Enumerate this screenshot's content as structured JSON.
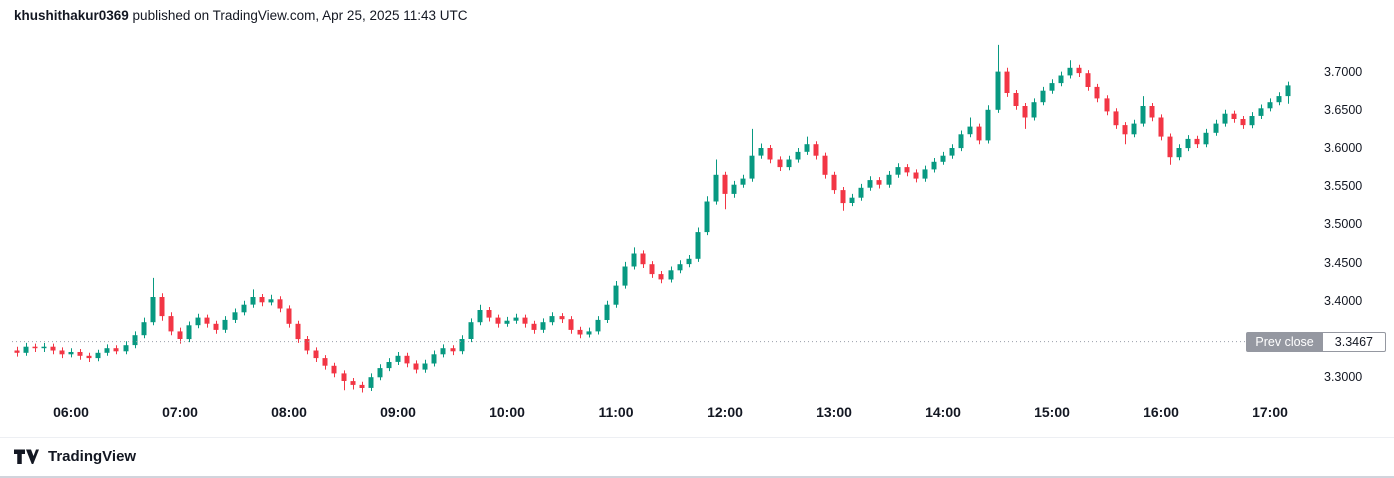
{
  "header": {
    "username": "khushithakur0369",
    "suffix": " published on TradingView.com, Apr 25, 2025 11:43 UTC"
  },
  "footer": {
    "brand": "TradingView"
  },
  "prev_close_badge": {
    "label": "Prev close",
    "value": "3.3467"
  },
  "colors": {
    "up": "#089981",
    "down": "#f23645",
    "text": "#131722",
    "prev_close_line": "#9a9ea9",
    "badge_bg": "#9598a1",
    "background": "#ffffff"
  },
  "chart_data": {
    "type": "candlestick",
    "ohlc_format": [
      "time",
      "open",
      "high",
      "low",
      "close"
    ],
    "y_ticks": [
      "3.7000",
      "3.6500",
      "3.6000",
      "3.5500",
      "3.5000",
      "3.4500",
      "3.4000",
      "3.3000"
    ],
    "x_ticks": [
      "06:00",
      "07:00",
      "08:00",
      "09:00",
      "10:00",
      "11:00",
      "12:00",
      "13:00",
      "14:00",
      "15:00",
      "16:00",
      "17:00"
    ],
    "prev_close": 3.3467,
    "ylim": [
      3.2545,
      3.7545
    ],
    "grid": false,
    "candles": [
      [
        "05:30",
        3.335,
        3.34,
        3.327,
        3.332
      ],
      [
        "05:35",
        3.332,
        3.345,
        3.328,
        3.34
      ],
      [
        "05:40",
        3.34,
        3.344,
        3.333,
        3.338
      ],
      [
        "05:45",
        3.338,
        3.345,
        3.333,
        3.34
      ],
      [
        "05:50",
        3.34,
        3.344,
        3.33,
        3.335
      ],
      [
        "05:55",
        3.335,
        3.339,
        3.325,
        3.33
      ],
      [
        "06:00",
        3.33,
        3.338,
        3.326,
        3.333
      ],
      [
        "06:05",
        3.333,
        3.337,
        3.323,
        3.328
      ],
      [
        "06:10",
        3.328,
        3.332,
        3.32,
        3.325
      ],
      [
        "06:15",
        3.325,
        3.336,
        3.321,
        3.332
      ],
      [
        "06:20",
        3.332,
        3.343,
        3.328,
        3.338
      ],
      [
        "06:25",
        3.338,
        3.342,
        3.33,
        3.334
      ],
      [
        "06:30",
        3.334,
        3.347,
        3.33,
        3.342
      ],
      [
        "06:35",
        3.342,
        3.36,
        3.338,
        3.355
      ],
      [
        "06:40",
        3.355,
        3.378,
        3.351,
        3.372
      ],
      [
        "06:45",
        3.372,
        3.43,
        3.368,
        3.405
      ],
      [
        "06:50",
        3.405,
        3.41,
        3.374,
        3.38
      ],
      [
        "06:55",
        3.38,
        3.385,
        3.355,
        3.36
      ],
      [
        "07:00",
        3.36,
        3.365,
        3.344,
        3.35
      ],
      [
        "07:05",
        3.35,
        3.373,
        3.346,
        3.368
      ],
      [
        "07:10",
        3.368,
        3.383,
        3.364,
        3.378
      ],
      [
        "07:15",
        3.378,
        3.382,
        3.365,
        3.37
      ],
      [
        "07:20",
        3.37,
        3.374,
        3.357,
        3.362
      ],
      [
        "07:25",
        3.362,
        3.38,
        3.358,
        3.375
      ],
      [
        "07:30",
        3.375,
        3.39,
        3.371,
        3.385
      ],
      [
        "07:35",
        3.385,
        3.4,
        3.381,
        3.395
      ],
      [
        "07:40",
        3.395,
        3.415,
        3.391,
        3.405
      ],
      [
        "07:45",
        3.405,
        3.409,
        3.393,
        3.398
      ],
      [
        "07:50",
        3.398,
        3.408,
        3.394,
        3.402
      ],
      [
        "07:55",
        3.402,
        3.406,
        3.385,
        3.39
      ],
      [
        "08:00",
        3.39,
        3.394,
        3.365,
        3.37
      ],
      [
        "08:05",
        3.37,
        3.374,
        3.345,
        3.35
      ],
      [
        "08:10",
        3.35,
        3.354,
        3.33,
        3.335
      ],
      [
        "08:15",
        3.335,
        3.339,
        3.32,
        3.325
      ],
      [
        "08:20",
        3.325,
        3.329,
        3.31,
        3.315
      ],
      [
        "08:25",
        3.315,
        3.319,
        3.3,
        3.305
      ],
      [
        "08:30",
        3.305,
        3.309,
        3.283,
        3.295
      ],
      [
        "08:35",
        3.295,
        3.299,
        3.284,
        3.29
      ],
      [
        "08:40",
        3.29,
        3.294,
        3.28,
        3.286
      ],
      [
        "08:45",
        3.286,
        3.305,
        3.282,
        3.3
      ],
      [
        "08:50",
        3.3,
        3.317,
        3.296,
        3.312
      ],
      [
        "08:55",
        3.312,
        3.325,
        3.308,
        3.32
      ],
      [
        "09:00",
        3.32,
        3.333,
        3.316,
        3.328
      ],
      [
        "09:05",
        3.328,
        3.332,
        3.313,
        3.318
      ],
      [
        "09:10",
        3.318,
        3.322,
        3.305,
        3.31
      ],
      [
        "09:15",
        3.31,
        3.323,
        3.306,
        3.318
      ],
      [
        "09:20",
        3.318,
        3.335,
        3.314,
        3.33
      ],
      [
        "09:25",
        3.33,
        3.343,
        3.326,
        3.338
      ],
      [
        "09:30",
        3.338,
        3.342,
        3.329,
        3.334
      ],
      [
        "09:35",
        3.334,
        3.355,
        3.33,
        3.35
      ],
      [
        "09:40",
        3.35,
        3.377,
        3.346,
        3.372
      ],
      [
        "09:45",
        3.372,
        3.395,
        3.368,
        3.388
      ],
      [
        "09:50",
        3.388,
        3.392,
        3.373,
        3.378
      ],
      [
        "09:55",
        3.378,
        3.382,
        3.365,
        3.37
      ],
      [
        "10:00",
        3.37,
        3.379,
        3.366,
        3.374
      ],
      [
        "10:05",
        3.374,
        3.383,
        3.37,
        3.378
      ],
      [
        "10:10",
        3.378,
        3.382,
        3.365,
        3.37
      ],
      [
        "10:15",
        3.37,
        3.374,
        3.357,
        3.362
      ],
      [
        "10:20",
        3.362,
        3.377,
        3.358,
        3.372
      ],
      [
        "10:25",
        3.372,
        3.385,
        3.368,
        3.38
      ],
      [
        "10:30",
        3.38,
        3.384,
        3.371,
        3.376
      ],
      [
        "10:35",
        3.376,
        3.38,
        3.357,
        3.362
      ],
      [
        "10:40",
        3.362,
        3.366,
        3.351,
        3.356
      ],
      [
        "10:45",
        3.356,
        3.365,
        3.352,
        3.36
      ],
      [
        "10:50",
        3.36,
        3.38,
        3.356,
        3.375
      ],
      [
        "10:55",
        3.375,
        3.4,
        3.371,
        3.395
      ],
      [
        "11:00",
        3.395,
        3.426,
        3.391,
        3.42
      ],
      [
        "11:05",
        3.42,
        3.451,
        3.416,
        3.445
      ],
      [
        "11:10",
        3.445,
        3.47,
        3.441,
        3.462
      ],
      [
        "11:15",
        3.462,
        3.466,
        3.443,
        3.448
      ],
      [
        "11:20",
        3.448,
        3.452,
        3.43,
        3.435
      ],
      [
        "11:25",
        3.435,
        3.439,
        3.423,
        3.428
      ],
      [
        "11:30",
        3.428,
        3.445,
        3.424,
        3.44
      ],
      [
        "11:35",
        3.44,
        3.453,
        3.436,
        3.448
      ],
      [
        "11:40",
        3.448,
        3.46,
        3.444,
        3.455
      ],
      [
        "11:45",
        3.455,
        3.496,
        3.451,
        3.49
      ],
      [
        "11:50",
        3.49,
        3.537,
        3.486,
        3.53
      ],
      [
        "11:55",
        3.53,
        3.585,
        3.526,
        3.565
      ],
      [
        "12:00",
        3.565,
        3.569,
        3.52,
        3.54
      ],
      [
        "12:05",
        3.54,
        3.557,
        3.535,
        3.552
      ],
      [
        "12:10",
        3.552,
        3.565,
        3.548,
        3.56
      ],
      [
        "12:15",
        3.56,
        3.625,
        3.556,
        3.59
      ],
      [
        "12:20",
        3.59,
        3.606,
        3.586,
        3.6
      ],
      [
        "12:25",
        3.6,
        3.604,
        3.58,
        3.585
      ],
      [
        "12:30",
        3.585,
        3.589,
        3.57,
        3.575
      ],
      [
        "12:35",
        3.575,
        3.59,
        3.571,
        3.585
      ],
      [
        "12:40",
        3.585,
        3.6,
        3.581,
        3.595
      ],
      [
        "12:45",
        3.595,
        3.615,
        3.591,
        3.605
      ],
      [
        "12:50",
        3.605,
        3.609,
        3.585,
        3.59
      ],
      [
        "12:55",
        3.59,
        3.594,
        3.56,
        3.565
      ],
      [
        "13:00",
        3.565,
        3.569,
        3.54,
        3.545
      ],
      [
        "13:05",
        3.545,
        3.549,
        3.518,
        3.528
      ],
      [
        "13:10",
        3.528,
        3.54,
        3.524,
        3.535
      ],
      [
        "13:15",
        3.535,
        3.553,
        3.531,
        3.548
      ],
      [
        "13:20",
        3.548,
        3.563,
        3.544,
        3.558
      ],
      [
        "13:25",
        3.558,
        3.562,
        3.547,
        3.552
      ],
      [
        "13:30",
        3.552,
        3.57,
        3.548,
        3.565
      ],
      [
        "13:35",
        3.565,
        3.58,
        3.561,
        3.575
      ],
      [
        "13:40",
        3.575,
        3.579,
        3.563,
        3.568
      ],
      [
        "13:45",
        3.568,
        3.572,
        3.555,
        3.56
      ],
      [
        "13:50",
        3.56,
        3.577,
        3.556,
        3.572
      ],
      [
        "13:55",
        3.572,
        3.587,
        3.568,
        3.582
      ],
      [
        "14:00",
        3.582,
        3.595,
        3.578,
        3.59
      ],
      [
        "14:05",
        3.59,
        3.605,
        3.586,
        3.6
      ],
      [
        "14:10",
        3.6,
        3.623,
        3.596,
        3.618
      ],
      [
        "14:15",
        3.618,
        3.64,
        3.614,
        3.628
      ],
      [
        "14:20",
        3.628,
        3.632,
        3.605,
        3.61
      ],
      [
        "14:25",
        3.61,
        3.656,
        3.606,
        3.65
      ],
      [
        "14:30",
        3.65,
        3.735,
        3.646,
        3.7
      ],
      [
        "14:35",
        3.7,
        3.705,
        3.667,
        3.672
      ],
      [
        "14:40",
        3.672,
        3.676,
        3.65,
        3.655
      ],
      [
        "14:45",
        3.655,
        3.659,
        3.625,
        3.64
      ],
      [
        "14:50",
        3.64,
        3.665,
        3.636,
        3.66
      ],
      [
        "14:55",
        3.66,
        3.68,
        3.656,
        3.675
      ],
      [
        "15:00",
        3.675,
        3.69,
        3.671,
        3.685
      ],
      [
        "15:05",
        3.685,
        3.7,
        3.681,
        3.695
      ],
      [
        "15:10",
        3.695,
        3.715,
        3.691,
        3.705
      ],
      [
        "15:15",
        3.705,
        3.709,
        3.693,
        3.698
      ],
      [
        "15:20",
        3.698,
        3.702,
        3.675,
        3.68
      ],
      [
        "15:25",
        3.68,
        3.684,
        3.66,
        3.665
      ],
      [
        "15:30",
        3.665,
        3.669,
        3.643,
        3.648
      ],
      [
        "15:35",
        3.648,
        3.652,
        3.625,
        3.63
      ],
      [
        "15:40",
        3.63,
        3.634,
        3.605,
        3.618
      ],
      [
        "15:45",
        3.618,
        3.637,
        3.614,
        3.632
      ],
      [
        "15:50",
        3.632,
        3.668,
        3.628,
        3.655
      ],
      [
        "15:55",
        3.655,
        3.659,
        3.635,
        3.64
      ],
      [
        "16:00",
        3.64,
        3.644,
        3.61,
        3.615
      ],
      [
        "16:05",
        3.615,
        3.619,
        3.578,
        3.588
      ],
      [
        "16:10",
        3.588,
        3.605,
        3.584,
        3.6
      ],
      [
        "16:15",
        3.6,
        3.617,
        3.596,
        3.612
      ],
      [
        "16:20",
        3.612,
        3.616,
        3.6,
        3.605
      ],
      [
        "16:25",
        3.605,
        3.625,
        3.601,
        3.62
      ],
      [
        "16:30",
        3.62,
        3.637,
        3.616,
        3.632
      ],
      [
        "16:35",
        3.632,
        3.65,
        3.628,
        3.645
      ],
      [
        "16:40",
        3.645,
        3.649,
        3.633,
        3.638
      ],
      [
        "16:45",
        3.638,
        3.642,
        3.625,
        3.63
      ],
      [
        "16:50",
        3.63,
        3.647,
        3.626,
        3.642
      ],
      [
        "16:55",
        3.642,
        3.657,
        3.638,
        3.652
      ],
      [
        "17:00",
        3.652,
        3.665,
        3.648,
        3.66
      ],
      [
        "17:05",
        3.66,
        3.673,
        3.656,
        3.668
      ],
      [
        "17:10",
        3.668,
        3.687,
        3.658,
        3.682
      ]
    ]
  }
}
